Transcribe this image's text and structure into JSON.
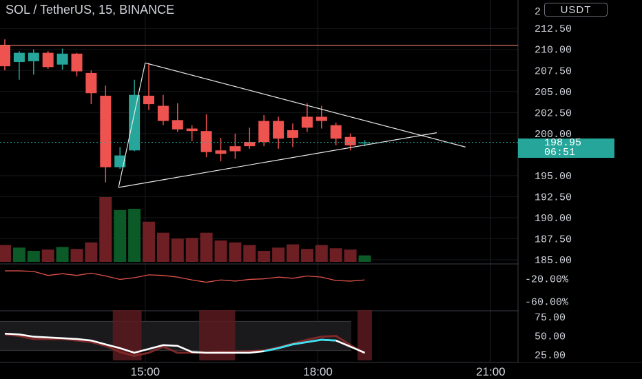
{
  "header": {
    "title": "SOL / TetherUS, 15, BINANCE",
    "currency": "USDT"
  },
  "last_price": {
    "value": "198.95",
    "countdown": "06:51"
  },
  "chart_data": {
    "type": "candlestick",
    "symbol": "SOL / TetherUS",
    "interval": "15",
    "exchange": "BINANCE",
    "price_axis": {
      "ylim": [
        185,
        213.5
      ],
      "ticks": [
        "212.50",
        "210.00",
        "207.50",
        "205.00",
        "202.50",
        "200.00",
        "195.00",
        "192.50",
        "190.00",
        "187.50",
        "185.00"
      ],
      "truncated_top_label": "2"
    },
    "time_axis": {
      "ticks": [
        {
          "label": "15:00",
          "bar": 9.75
        },
        {
          "label": "18:00",
          "bar": 21.75
        },
        {
          "label": "21:00",
          "bar": 33.75
        }
      ],
      "xlim": [
        0,
        36.5
      ]
    },
    "resistance_line": 210.5,
    "triangle": {
      "upper": [
        [
          9.75,
          208.4
        ],
        [
          32.0,
          198.4
        ]
      ],
      "lower": [
        [
          7.9,
          193.6
        ],
        [
          30.0,
          200.1
        ]
      ]
    },
    "candles": [
      {
        "o": 210.5,
        "h": 211.2,
        "c": 208.0,
        "l": 207.5
      },
      {
        "o": 208.5,
        "h": 209.8,
        "c": 209.6,
        "l": 206.4
      },
      {
        "o": 208.6,
        "h": 210.0,
        "c": 209.6,
        "l": 207.0
      },
      {
        "o": 209.6,
        "h": 209.8,
        "c": 207.9,
        "l": 207.7
      },
      {
        "o": 208.2,
        "h": 210.1,
        "c": 209.5,
        "l": 207.6
      },
      {
        "o": 209.5,
        "h": 209.6,
        "c": 207.4,
        "l": 206.8
      },
      {
        "o": 207.2,
        "h": 207.5,
        "c": 204.8,
        "l": 203.5
      },
      {
        "o": 204.5,
        "h": 205.7,
        "c": 196.0,
        "l": 194.2
      },
      {
        "o": 196.0,
        "h": 198.4,
        "c": 197.4,
        "l": 195.8
      },
      {
        "o": 198.0,
        "h": 206.4,
        "c": 204.6,
        "l": 197.9
      },
      {
        "o": 204.5,
        "h": 208.4,
        "c": 203.5,
        "l": 202.8
      },
      {
        "o": 203.3,
        "h": 204.6,
        "c": 201.5,
        "l": 201.0
      },
      {
        "o": 201.6,
        "h": 203.6,
        "c": 200.5,
        "l": 200.2
      },
      {
        "o": 200.6,
        "h": 201.0,
        "c": 200.3,
        "l": 199.1
      },
      {
        "o": 200.3,
        "h": 202.3,
        "c": 197.8,
        "l": 197.2
      },
      {
        "o": 198.0,
        "h": 199.5,
        "c": 197.6,
        "l": 196.7
      },
      {
        "o": 198.5,
        "h": 200.0,
        "c": 197.9,
        "l": 197.0
      },
      {
        "o": 199.0,
        "h": 200.7,
        "c": 198.5,
        "l": 198.2
      },
      {
        "o": 201.5,
        "h": 202.2,
        "c": 199.0,
        "l": 198.5
      },
      {
        "o": 201.5,
        "h": 202.0,
        "c": 199.4,
        "l": 198.2
      },
      {
        "o": 200.4,
        "h": 201.2,
        "c": 199.5,
        "l": 198.4
      },
      {
        "o": 202.0,
        "h": 203.6,
        "c": 200.7,
        "l": 200.2
      },
      {
        "o": 202.0,
        "h": 203.3,
        "c": 201.5,
        "l": 200.6
      },
      {
        "o": 201.0,
        "h": 201.3,
        "c": 199.4,
        "l": 198.6
      },
      {
        "o": 199.6,
        "h": 200.0,
        "c": 198.6,
        "l": 198.0
      },
      {
        "o": 198.9,
        "h": 199.2,
        "c": 198.95,
        "l": 198.5
      }
    ],
    "volume": {
      "ylim": [
        0,
        100
      ],
      "values": [
        26,
        22,
        17,
        19,
        23,
        20,
        30,
        100,
        80,
        82,
        62,
        45,
        36,
        37,
        45,
        33,
        30,
        26,
        17,
        22,
        27,
        20,
        26,
        21,
        19,
        10
      ]
    },
    "oscillator_1": {
      "ticks": [
        "-20.00%",
        "-60.00%"
      ],
      "ylim": [
        -75,
        5
      ],
      "values": [
        -6,
        -6,
        -7,
        -14,
        -11,
        -14,
        -10,
        -15,
        -21,
        -18,
        -13,
        -14,
        -17,
        -22,
        -26,
        -22,
        -24,
        -21,
        -20,
        -17,
        -19,
        -15,
        -17,
        -23,
        -24,
        -22
      ]
    },
    "oscillator_2": {
      "ticks": [
        "75.00",
        "50.00",
        "25.00"
      ],
      "ylim": [
        18,
        82
      ],
      "band": [
        31,
        69
      ],
      "shaded_regions": [
        [
          7.5,
          9.5
        ],
        [
          13.5,
          16.0
        ],
        [
          24.5,
          25.5
        ]
      ],
      "fast": [
        53,
        52,
        49,
        48,
        47,
        46,
        44,
        39,
        34,
        28,
        33,
        38,
        37,
        29,
        28,
        28,
        28,
        28,
        30,
        34,
        39,
        42,
        45,
        44,
        36,
        28
      ],
      "slow": [
        52,
        50,
        46,
        46,
        46,
        44,
        42,
        37,
        29,
        24,
        28,
        36,
        28,
        28,
        28,
        29,
        29,
        30,
        31,
        35,
        40,
        45,
        49,
        50,
        38,
        27
      ]
    }
  }
}
